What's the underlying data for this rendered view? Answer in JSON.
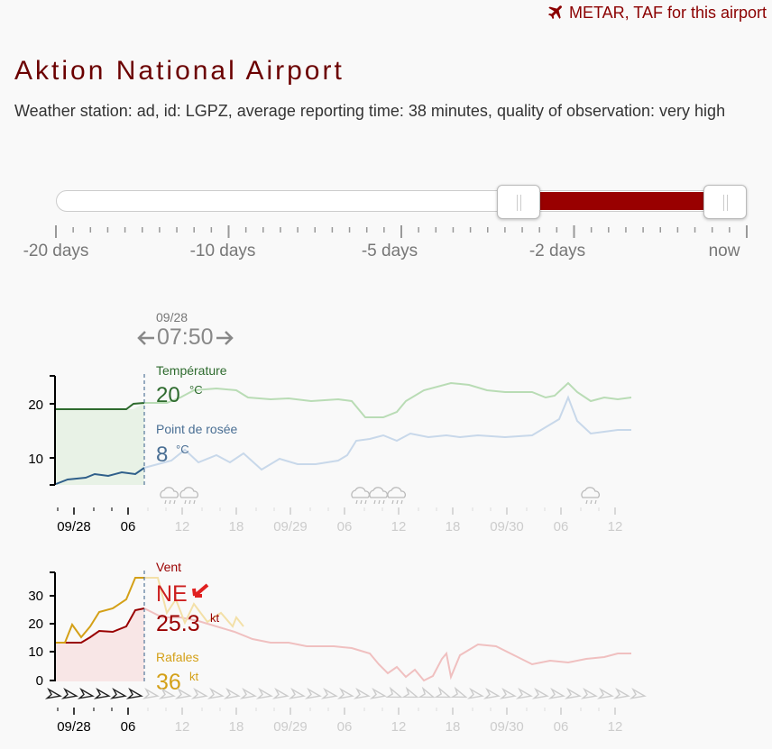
{
  "header": {
    "metar_link": "METAR, TAF for this airport",
    "metar_icon": "airplane-icon",
    "title": "Aktion National Airport",
    "station_info": "Weather station: ad, id: LGPZ, average reporting time: 38 minutes, quality of observation: very high"
  },
  "slider": {
    "labels": [
      "-20 days",
      "-10 days",
      "-5 days",
      "-2 days",
      "now"
    ],
    "selected_range": [
      "-2 days",
      "now"
    ]
  },
  "cursor": {
    "date": "09/28",
    "time": "07:50",
    "left_arrow_icon": "arrow-left-icon",
    "right_arrow_icon": "arrow-right-icon"
  },
  "temp_chart": {
    "temp_label": "Température",
    "temp_value": "20",
    "temp_unit": "°C",
    "dew_label": "Point de rosée",
    "dew_value": "8",
    "dew_unit": "°C",
    "y_ticks": [
      "20",
      "10"
    ],
    "x_ticks": [
      "09/28",
      "06",
      "12",
      "18",
      "09/29",
      "06",
      "12",
      "18",
      "09/30",
      "06",
      "12"
    ],
    "weather_icon": "rain-cloud-icon",
    "colors": {
      "temp": "#2e6b2e",
      "temp_faded": "#b9dcb5",
      "dew": "#2f5f8a",
      "dew_faded": "#c8d8ea",
      "fill": "#e8f2e6"
    }
  },
  "wind_chart": {
    "wind_label": "Vent",
    "direction": "NE",
    "direction_icon": "wind-direction-arrow-icon",
    "speed_value": "25.3",
    "speed_unit": "kt",
    "gust_label": "Rafales",
    "gust_value": "36",
    "gust_unit": "kt",
    "y_ticks": [
      "30",
      "20",
      "10",
      "0"
    ],
    "x_ticks": [
      "09/28",
      "06",
      "12",
      "18",
      "09/29",
      "06",
      "12",
      "18",
      "09/30",
      "06",
      "12"
    ],
    "colors": {
      "wind": "#990000",
      "wind_faded": "#f0c0c0",
      "gust": "#d4a017",
      "gust_faded": "#f3e0a8",
      "fill": "#f8e6e6"
    }
  }
}
